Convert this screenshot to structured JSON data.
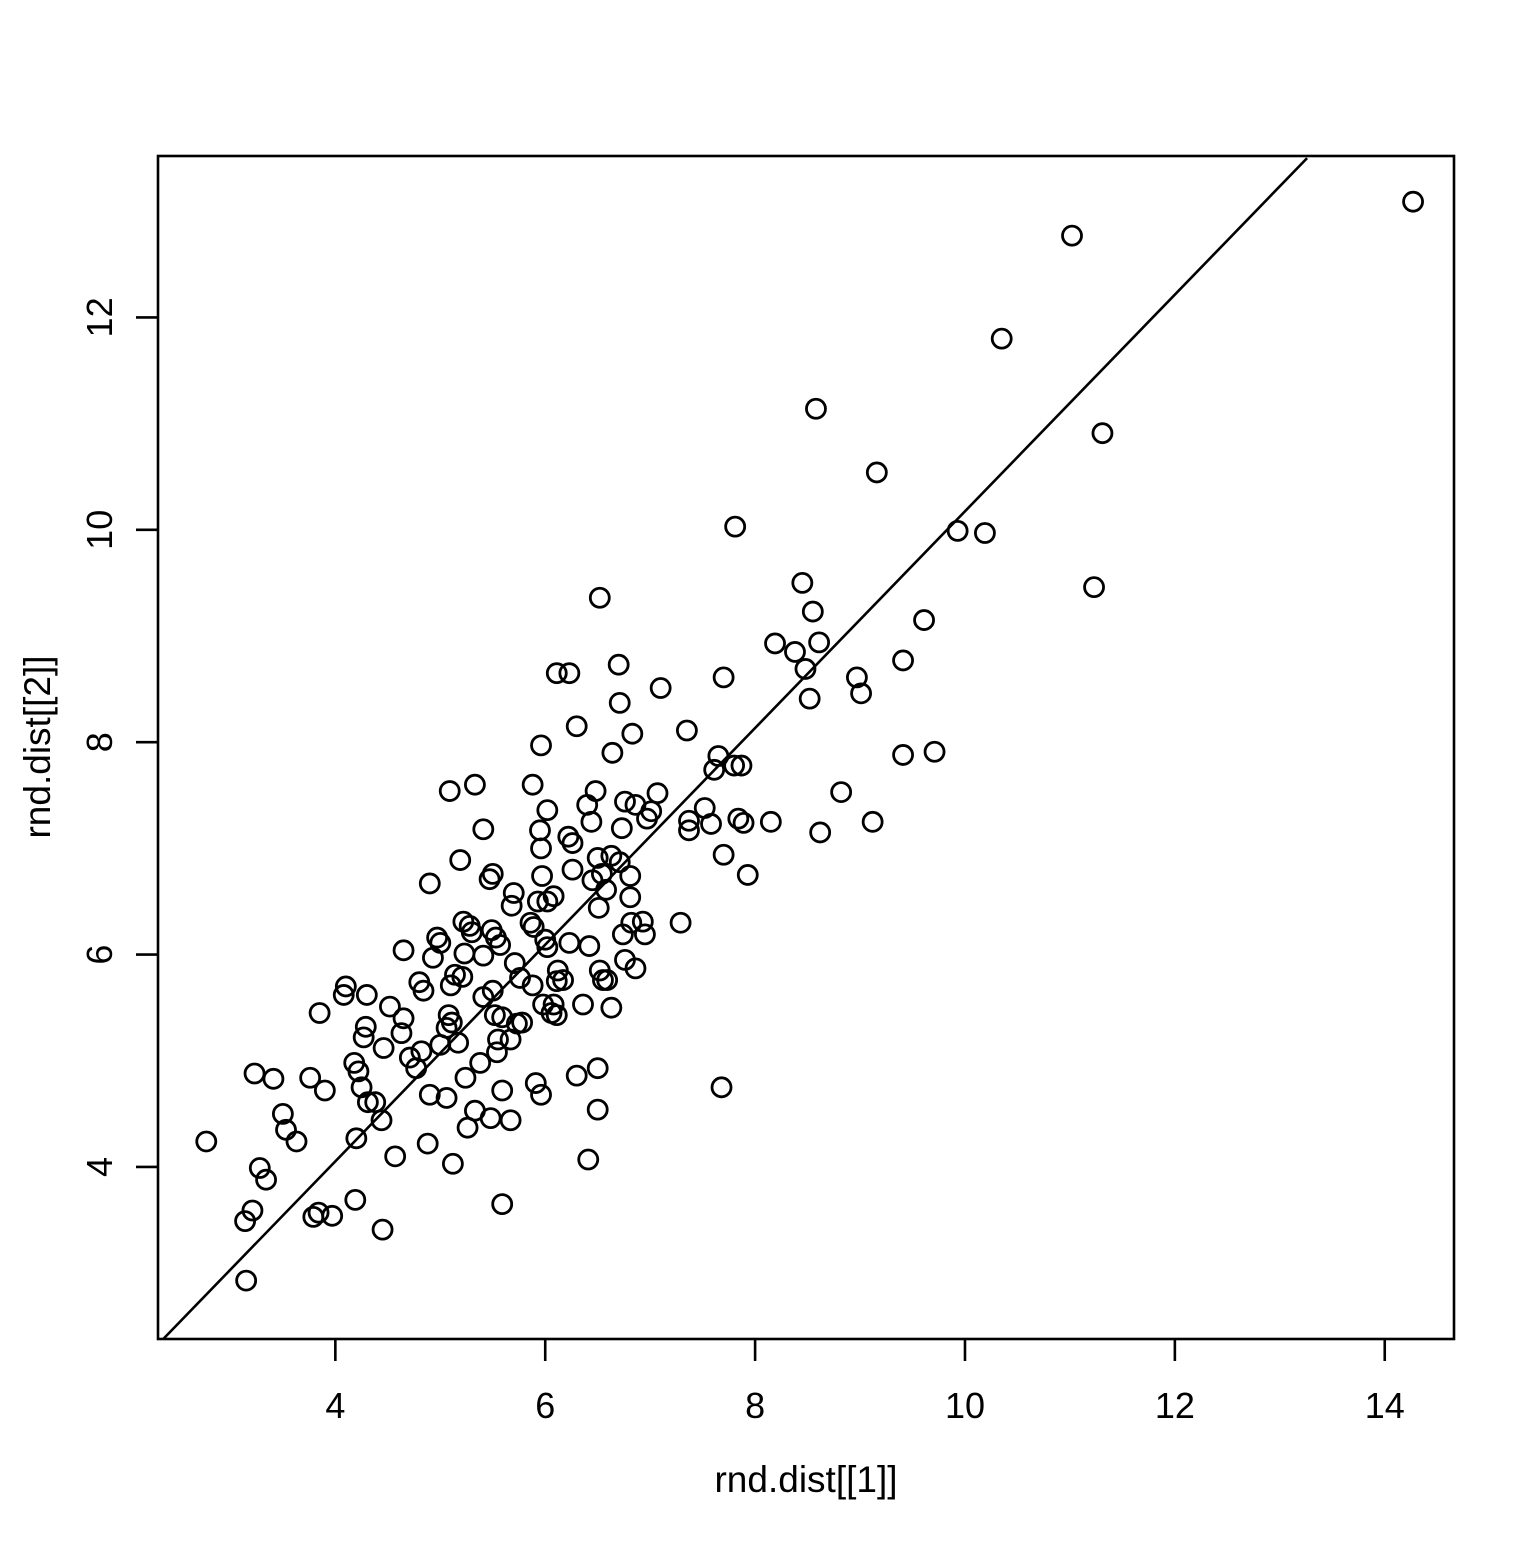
{
  "figure": {
    "background_color": "#ffffff",
    "foreground_color": "#000000"
  },
  "chart_data": {
    "type": "scatter",
    "title": "",
    "xlabel": "rnd.dist[[1]]",
    "ylabel": "rnd.dist[[2]]",
    "x_ticks": [
      4,
      6,
      8,
      10,
      12,
      14
    ],
    "y_ticks": [
      4,
      6,
      8,
      10,
      12
    ],
    "xlim": [
      2.31,
      14.66
    ],
    "ylim": [
      2.38,
      13.52
    ],
    "grid": false,
    "legend": "none",
    "marker": "open-circle",
    "marker_color": "#000000",
    "line": {
      "description": "near-identity straight line (approx y = x fit)",
      "slope": 1.02,
      "intercept": -0.03,
      "x1": 2.36,
      "y1": 2.38,
      "x2": 13.26,
      "y2": 13.5,
      "color": "#000000"
    },
    "points": [
      [
        11.02,
        12.77
      ],
      [
        14.27,
        13.09
      ],
      [
        11.31,
        10.91
      ],
      [
        10.35,
        11.8
      ],
      [
        8.58,
        11.14
      ],
      [
        9.16,
        10.54
      ],
      [
        7.81,
        10.03
      ],
      [
        9.93,
        9.99
      ],
      [
        10.19,
        9.97
      ],
      [
        8.45,
        9.5
      ],
      [
        11.23,
        9.46
      ],
      [
        8.55,
        9.23
      ],
      [
        9.61,
        9.15
      ],
      [
        8.61,
        8.94
      ],
      [
        8.19,
        8.93
      ],
      [
        8.38,
        8.85
      ],
      [
        9.41,
        8.77
      ],
      [
        6.7,
        8.73
      ],
      [
        8.48,
        8.69
      ],
      [
        8.97,
        8.61
      ],
      [
        7.7,
        8.61
      ],
      [
        7.1,
        8.51
      ],
      [
        9.01,
        8.46
      ],
      [
        8.52,
        8.41
      ],
      [
        6.71,
        8.37
      ],
      [
        7.35,
        8.11
      ],
      [
        6.83,
        8.08
      ],
      [
        9.71,
        7.91
      ],
      [
        9.41,
        7.88
      ],
      [
        7.65,
        7.87
      ],
      [
        7.8,
        7.78
      ],
      [
        7.87,
        7.78
      ],
      [
        7.61,
        7.74
      ],
      [
        6.64,
        7.9
      ],
      [
        8.82,
        7.53
      ],
      [
        7.07,
        7.52
      ],
      [
        6.76,
        7.44
      ],
      [
        6.86,
        7.41
      ],
      [
        7.52,
        7.38
      ],
      [
        7.01,
        7.35
      ],
      [
        6.97,
        7.28
      ],
      [
        7.37,
        7.26
      ],
      [
        7.37,
        7.17
      ],
      [
        7.58,
        7.23
      ],
      [
        7.84,
        7.28
      ],
      [
        7.89,
        7.24
      ],
      [
        8.15,
        7.25
      ],
      [
        9.12,
        7.25
      ],
      [
        8.62,
        7.15
      ],
      [
        7.7,
        6.94
      ],
      [
        7.93,
        6.75
      ],
      [
        6.73,
        7.19
      ],
      [
        6.52,
        9.36
      ],
      [
        6.11,
        8.65
      ],
      [
        6.23,
        8.65
      ],
      [
        6.3,
        8.15
      ],
      [
        5.96,
        7.97
      ],
      [
        5.09,
        7.54
      ],
      [
        5.33,
        7.6
      ],
      [
        5.88,
        7.6
      ],
      [
        6.02,
        7.36
      ],
      [
        5.41,
        7.18
      ],
      [
        5.95,
        7.17
      ],
      [
        5.96,
        7.0
      ],
      [
        6.22,
        7.11
      ],
      [
        6.26,
        7.05
      ],
      [
        6.44,
        7.25
      ],
      [
        6.4,
        7.41
      ],
      [
        6.48,
        7.54
      ],
      [
        5.19,
        6.89
      ],
      [
        6.5,
        6.91
      ],
      [
        6.54,
        6.76
      ],
      [
        6.58,
        6.61
      ],
      [
        6.45,
        6.7
      ],
      [
        6.63,
        6.93
      ],
      [
        6.71,
        6.87
      ],
      [
        6.81,
        6.74
      ],
      [
        6.81,
        6.54
      ],
      [
        6.26,
        6.8
      ],
      [
        5.97,
        6.74
      ],
      [
        5.5,
        6.76
      ],
      [
        4.9,
        6.67
      ],
      [
        5.47,
        6.71
      ],
      [
        6.82,
        6.3
      ],
      [
        6.93,
        6.31
      ],
      [
        6.74,
        6.19
      ],
      [
        6.95,
        6.19
      ],
      [
        7.29,
        6.3
      ],
      [
        6.76,
        5.95
      ],
      [
        6.86,
        5.87
      ],
      [
        6.59,
        5.76
      ],
      [
        6.63,
        5.5
      ],
      [
        7.68,
        4.75
      ],
      [
        5.7,
        6.58
      ],
      [
        5.68,
        6.46
      ],
      [
        5.93,
        6.5
      ],
      [
        6.02,
        6.5
      ],
      [
        6.08,
        6.55
      ],
      [
        5.86,
        6.3
      ],
      [
        5.89,
        6.26
      ],
      [
        6.51,
        6.44
      ],
      [
        5.22,
        6.31
      ],
      [
        5.28,
        6.27
      ],
      [
        5.3,
        6.21
      ],
      [
        5.49,
        6.23
      ],
      [
        5.53,
        6.16
      ],
      [
        5.57,
        6.09
      ],
      [
        4.97,
        6.16
      ],
      [
        5.0,
        6.11
      ],
      [
        4.93,
        5.97
      ],
      [
        5.23,
        6.01
      ],
      [
        5.41,
        5.99
      ],
      [
        6.0,
        6.14
      ],
      [
        6.02,
        6.07
      ],
      [
        6.23,
        6.11
      ],
      [
        6.42,
        6.08
      ],
      [
        6.52,
        5.85
      ],
      [
        6.55,
        5.76
      ],
      [
        6.12,
        5.85
      ],
      [
        6.17,
        5.76
      ],
      [
        6.11,
        5.75
      ],
      [
        5.71,
        5.92
      ],
      [
        5.76,
        5.78
      ],
      [
        5.88,
        5.71
      ],
      [
        5.98,
        5.53
      ],
      [
        6.08,
        5.53
      ],
      [
        5.14,
        5.81
      ],
      [
        5.21,
        5.79
      ],
      [
        5.1,
        5.71
      ],
      [
        5.41,
        5.6
      ],
      [
        5.08,
        5.43
      ],
      [
        5.11,
        5.36
      ],
      [
        5.06,
        5.31
      ],
      [
        5.52,
        5.43
      ],
      [
        5.59,
        5.41
      ],
      [
        5.73,
        5.35
      ],
      [
        5.78,
        5.36
      ],
      [
        6.06,
        5.45
      ],
      [
        6.11,
        5.43
      ],
      [
        6.36,
        5.53
      ],
      [
        5.55,
        5.2
      ],
      [
        5.17,
        5.17
      ],
      [
        5.54,
        5.08
      ],
      [
        5.67,
        5.2
      ],
      [
        4.65,
        6.04
      ],
      [
        4.1,
        5.7
      ],
      [
        4.08,
        5.62
      ],
      [
        4.3,
        5.62
      ],
      [
        4.52,
        5.51
      ],
      [
        4.65,
        5.4
      ],
      [
        4.29,
        5.32
      ],
      [
        4.27,
        5.22
      ],
      [
        4.46,
        5.12
      ],
      [
        4.63,
        5.26
      ],
      [
        3.85,
        5.45
      ],
      [
        4.8,
        5.74
      ],
      [
        4.84,
        5.66
      ],
      [
        5.5,
        5.66
      ],
      [
        4.71,
        5.03
      ],
      [
        4.82,
        5.09
      ],
      [
        4.77,
        4.93
      ],
      [
        5.0,
        5.15
      ],
      [
        5.38,
        4.98
      ],
      [
        5.24,
        4.84
      ],
      [
        4.18,
        4.98
      ],
      [
        4.22,
        4.9
      ],
      [
        4.25,
        4.75
      ],
      [
        4.9,
        4.68
      ],
      [
        5.06,
        4.65
      ],
      [
        5.59,
        4.72
      ],
      [
        5.91,
        4.79
      ],
      [
        5.96,
        4.68
      ],
      [
        6.3,
        4.86
      ],
      [
        5.33,
        4.53
      ],
      [
        5.48,
        4.46
      ],
      [
        5.26,
        4.37
      ],
      [
        5.67,
        4.44
      ],
      [
        4.88,
        4.22
      ],
      [
        5.12,
        4.03
      ],
      [
        6.41,
        4.07
      ],
      [
        5.59,
        3.65
      ],
      [
        6.5,
        4.54
      ],
      [
        6.5,
        4.93
      ],
      [
        3.23,
        4.88
      ],
      [
        3.41,
        4.83
      ],
      [
        3.76,
        4.84
      ],
      [
        3.9,
        4.72
      ],
      [
        3.5,
        4.5
      ],
      [
        3.53,
        4.35
      ],
      [
        3.63,
        4.24
      ],
      [
        4.2,
        4.27
      ],
      [
        2.77,
        4.24
      ],
      [
        3.28,
        3.99
      ],
      [
        3.34,
        3.88
      ],
      [
        3.21,
        3.59
      ],
      [
        3.14,
        3.49
      ],
      [
        3.79,
        3.53
      ],
      [
        3.84,
        3.57
      ],
      [
        3.97,
        3.54
      ],
      [
        4.19,
        3.69
      ],
      [
        4.45,
        3.41
      ],
      [
        3.15,
        2.93
      ],
      [
        4.44,
        4.44
      ],
      [
        4.31,
        4.61
      ],
      [
        4.38,
        4.61
      ],
      [
        4.57,
        4.1
      ]
    ]
  }
}
